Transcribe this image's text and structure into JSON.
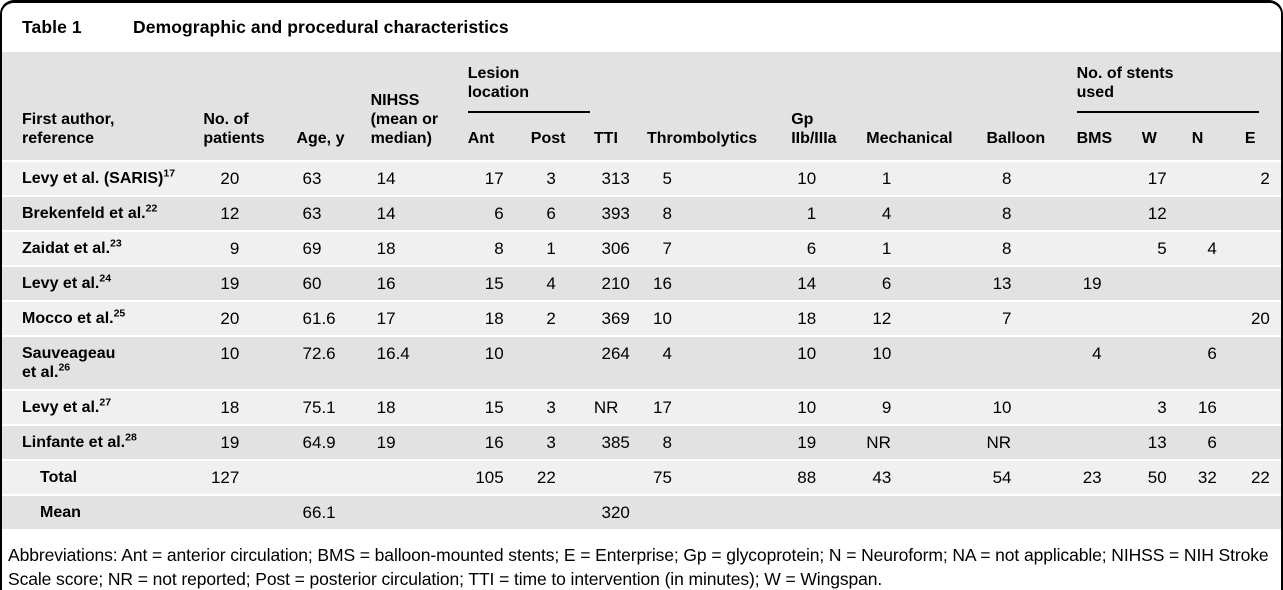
{
  "figure": {
    "title_label": "Table 1",
    "title_text": "Demographic and procedural characteristics",
    "footnote": "Abbreviations: Ant = anterior circulation; BMS = balloon-mounted stents; E = Enterprise; Gp = glycoprotein; N = Neuroform; NA = not applicable; NIHSS = NIH Stroke Scale score; NR = not reported; Post = posterior circulation; TTI = time to intervention (in minutes); W = Wingspan."
  },
  "colors": {
    "stripe_light": "#f0f0f0",
    "stripe_dark": "#e2e2e2",
    "frame": "#000000"
  },
  "table": {
    "column_groups": [
      {
        "key": "lesion",
        "label": "Lesion location",
        "columns": [
          "ant",
          "post"
        ]
      },
      {
        "key": "stents",
        "label": "No. of stents used",
        "columns": [
          "bms",
          "w",
          "n",
          "e"
        ]
      }
    ],
    "columns": [
      {
        "key": "author",
        "label": "First author, reference"
      },
      {
        "key": "patients",
        "label": "No. of patients"
      },
      {
        "key": "age",
        "label": "Age, y"
      },
      {
        "key": "nihss",
        "label": "NIHSS (mean or median)"
      },
      {
        "key": "ant",
        "label": "Ant",
        "group": "lesion"
      },
      {
        "key": "post",
        "label": "Post",
        "group": "lesion"
      },
      {
        "key": "tti",
        "label": "TTI"
      },
      {
        "key": "thromb",
        "label": "Thrombolytics"
      },
      {
        "key": "gp",
        "label": "Gp IIb/IIIa"
      },
      {
        "key": "mech",
        "label": "Mechanical"
      },
      {
        "key": "balloon",
        "label": "Balloon"
      },
      {
        "key": "bms",
        "label": "BMS",
        "group": "stents"
      },
      {
        "key": "w",
        "label": "W",
        "group": "stents"
      },
      {
        "key": "n",
        "label": "N",
        "group": "stents"
      },
      {
        "key": "e",
        "label": "E",
        "group": "stents"
      }
    ],
    "rows": [
      {
        "author_lines": [
          "Levy et al. (SARIS)"
        ],
        "ref": "17",
        "values": {
          "patients": "20",
          "age": "63",
          "nihss": "14",
          "ant": "17",
          "post": "3",
          "tti": "313",
          "thromb": "5",
          "gp": "10",
          "mech": "1",
          "balloon": "8",
          "bms": "",
          "w": "17",
          "n": "",
          "e": "2"
        }
      },
      {
        "author_lines": [
          "Brekenfeld et al."
        ],
        "ref": "22",
        "values": {
          "patients": "12",
          "age": "63",
          "nihss": "14",
          "ant": "6",
          "post": "6",
          "tti": "393",
          "thromb": "8",
          "gp": "1",
          "mech": "4",
          "balloon": "8",
          "bms": "",
          "w": "12",
          "n": "",
          "e": ""
        }
      },
      {
        "author_lines": [
          "Zaidat et al."
        ],
        "ref": "23",
        "values": {
          "patients": "9",
          "age": "69",
          "nihss": "18",
          "ant": "8",
          "post": "1",
          "tti": "306",
          "thromb": "7",
          "gp": "6",
          "mech": "1",
          "balloon": "8",
          "bms": "",
          "w": "5",
          "n": "4",
          "e": ""
        }
      },
      {
        "author_lines": [
          "Levy et al."
        ],
        "ref": "24",
        "values": {
          "patients": "19",
          "age": "60",
          "nihss": "16",
          "ant": "15",
          "post": "4",
          "tti": "210",
          "thromb": "16",
          "gp": "14",
          "mech": "6",
          "balloon": "13",
          "bms": "19",
          "w": "",
          "n": "",
          "e": ""
        }
      },
      {
        "author_lines": [
          "Mocco et al."
        ],
        "ref": "25",
        "values": {
          "patients": "20",
          "age": "61.6",
          "nihss": "17",
          "ant": "18",
          "post": "2",
          "tti": "369",
          "thromb": "10",
          "gp": "18",
          "mech": "12",
          "balloon": "7",
          "bms": "",
          "w": "",
          "n": "",
          "e": "20"
        }
      },
      {
        "author_lines": [
          "Sauveageau",
          "et al."
        ],
        "ref": "26",
        "values": {
          "patients": "10",
          "age": "72.6",
          "nihss": "16.4",
          "ant": "10",
          "post": "",
          "tti": "264",
          "thromb": "4",
          "gp": "10",
          "mech": "10",
          "balloon": "",
          "bms": "4",
          "w": "",
          "n": "6",
          "e": ""
        }
      },
      {
        "author_lines": [
          "Levy et al."
        ],
        "ref": "27",
        "values": {
          "patients": "18",
          "age": "75.1",
          "nihss": "18",
          "ant": "15",
          "post": "3",
          "tti": "NR",
          "thromb": "17",
          "gp": "10",
          "mech": "9",
          "balloon": "10",
          "bms": "",
          "w": "3",
          "n": "16",
          "e": ""
        }
      },
      {
        "author_lines": [
          "Linfante et al."
        ],
        "ref": "28",
        "values": {
          "patients": "19",
          "age": "64.9",
          "nihss": "19",
          "ant": "16",
          "post": "3",
          "tti": "385",
          "thromb": "8",
          "gp": "19",
          "mech": "NR",
          "balloon": "NR",
          "bms": "",
          "w": "13",
          "n": "6",
          "e": ""
        }
      }
    ],
    "summary_rows": [
      {
        "label": "Total",
        "values": {
          "patients": "127",
          "age": "",
          "nihss": "",
          "ant": "105",
          "post": "22",
          "tti": "",
          "thromb": "75",
          "gp": "88",
          "mech": "43",
          "balloon": "54",
          "bms": "23",
          "w": "50",
          "n": "32",
          "e": "22"
        }
      },
      {
        "label": "Mean",
        "values": {
          "patients": "",
          "age": "66.1",
          "nihss": "",
          "ant": "",
          "post": "",
          "tti": "320",
          "thromb": "",
          "gp": "",
          "mech": "",
          "balloon": "",
          "bms": "",
          "w": "",
          "n": "",
          "e": ""
        }
      }
    ]
  }
}
